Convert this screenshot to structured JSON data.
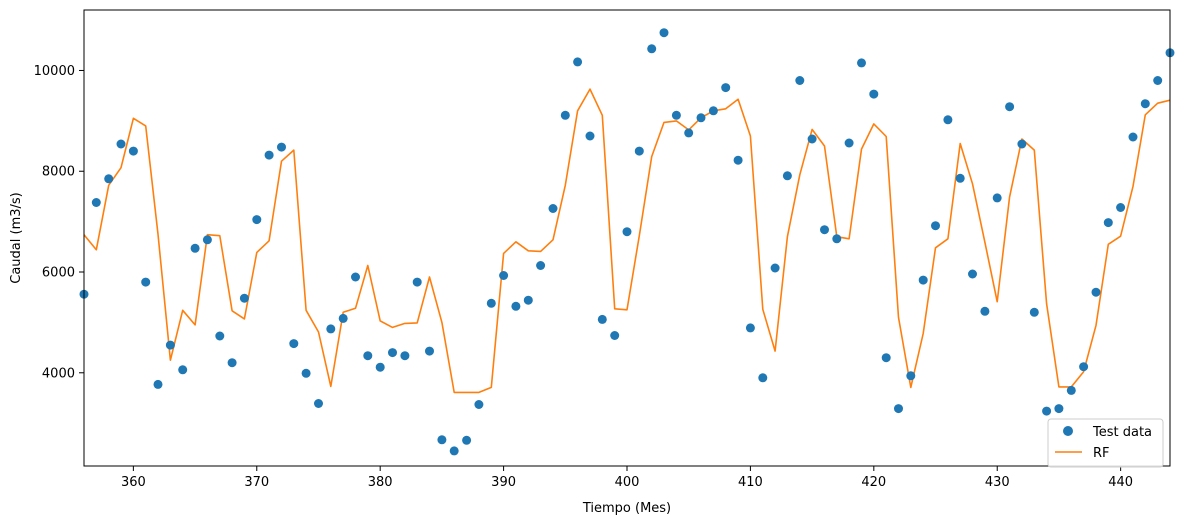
{
  "chart_data": {
    "type": "scatter",
    "xlabel": "Tiempo (Mes)",
    "ylabel": "Caudal (m3/s)",
    "xlim": [
      356,
      444
    ],
    "ylim": [
      2150,
      11200
    ],
    "xticks": [
      360,
      370,
      380,
      390,
      400,
      410,
      420,
      430,
      440
    ],
    "yticks": [
      4000,
      6000,
      8000,
      10000
    ],
    "grid": false,
    "legend_position": "lower-right",
    "series": [
      {
        "name": "Test data",
        "kind": "scatter",
        "color": "#1f77b4",
        "x": [
          356,
          357,
          358,
          359,
          360,
          361,
          362,
          363,
          364,
          365,
          366,
          367,
          368,
          369,
          370,
          371,
          372,
          373,
          374,
          375,
          376,
          377,
          378,
          379,
          380,
          381,
          382,
          383,
          384,
          385,
          386,
          387,
          388,
          389,
          390,
          391,
          392,
          393,
          394,
          395,
          396,
          397,
          398,
          399,
          400,
          401,
          402,
          403,
          404,
          405,
          406,
          407,
          408,
          409,
          410,
          411,
          412,
          413,
          414,
          415,
          416,
          417,
          418,
          419,
          420,
          421,
          422,
          423,
          424,
          425,
          426,
          427,
          428,
          429,
          430,
          431,
          432,
          433,
          434,
          435,
          436,
          437,
          438,
          439,
          440,
          441,
          442,
          443,
          444
        ],
        "y": [
          5560,
          7380,
          7850,
          8540,
          8400,
          5800,
          3770,
          4550,
          4060,
          6470,
          6640,
          4730,
          4200,
          5480,
          7040,
          8320,
          8480,
          4580,
          3990,
          3390,
          4870,
          5080,
          5900,
          4340,
          4110,
          4400,
          4340,
          5800,
          4430,
          2670,
          2450,
          2660,
          3370,
          5380,
          5930,
          5320,
          5440,
          6130,
          7260,
          9110,
          10170,
          8700,
          5060,
          4740,
          6800,
          8400,
          10430,
          10750,
          9110,
          8760,
          9060,
          9200,
          9660,
          8220,
          4890,
          3900,
          6080,
          7910,
          9800,
          8640,
          6840,
          6660,
          8560,
          10150,
          9530,
          4300,
          3290,
          3940,
          5840,
          6920,
          9020,
          7860,
          5960,
          5220,
          7470,
          9280,
          8540,
          5200,
          3240,
          3290,
          3650,
          4120,
          5600,
          6980,
          7280,
          8680,
          9340,
          9800,
          10350
        ]
      },
      {
        "name": "RF",
        "kind": "line",
        "color": "#ff7f0e",
        "x": [
          356,
          357,
          358,
          359,
          360,
          361,
          362,
          363,
          364,
          365,
          366,
          367,
          368,
          369,
          370,
          371,
          372,
          373,
          374,
          375,
          376,
          377,
          378,
          379,
          380,
          381,
          382,
          383,
          384,
          385,
          386,
          387,
          388,
          389,
          390,
          391,
          392,
          393,
          394,
          395,
          396,
          397,
          398,
          399,
          400,
          401,
          402,
          403,
          404,
          405,
          406,
          407,
          408,
          409,
          410,
          411,
          412,
          413,
          414,
          415,
          416,
          417,
          418,
          419,
          420,
          421,
          422,
          423,
          424,
          425,
          426,
          427,
          428,
          429,
          430,
          431,
          432,
          433,
          434,
          435,
          436,
          437,
          438,
          439,
          440,
          441,
          442,
          443,
          444
        ],
        "y": [
          6740,
          6440,
          7720,
          8070,
          9050,
          8900,
          6750,
          4250,
          5240,
          4950,
          6740,
          6720,
          5230,
          5070,
          6390,
          6620,
          8200,
          8420,
          5240,
          4810,
          3730,
          5200,
          5280,
          6130,
          5030,
          4900,
          4980,
          4990,
          5900,
          5000,
          3610,
          3610,
          3610,
          3710,
          6370,
          6600,
          6420,
          6410,
          6640,
          7720,
          9200,
          9630,
          9110,
          5270,
          5250,
          6720,
          8290,
          8970,
          9000,
          8820,
          9060,
          9200,
          9240,
          9430,
          8700,
          5260,
          4430,
          6700,
          7930,
          8830,
          8500,
          6700,
          6660,
          8440,
          8940,
          8690,
          5100,
          3710,
          4780,
          6480,
          6660,
          8550,
          7750,
          6590,
          5410,
          7490,
          8640,
          8420,
          5370,
          3720,
          3720,
          4020,
          4940,
          6550,
          6710,
          7700,
          9120,
          9350,
          9410
        ]
      }
    ]
  }
}
